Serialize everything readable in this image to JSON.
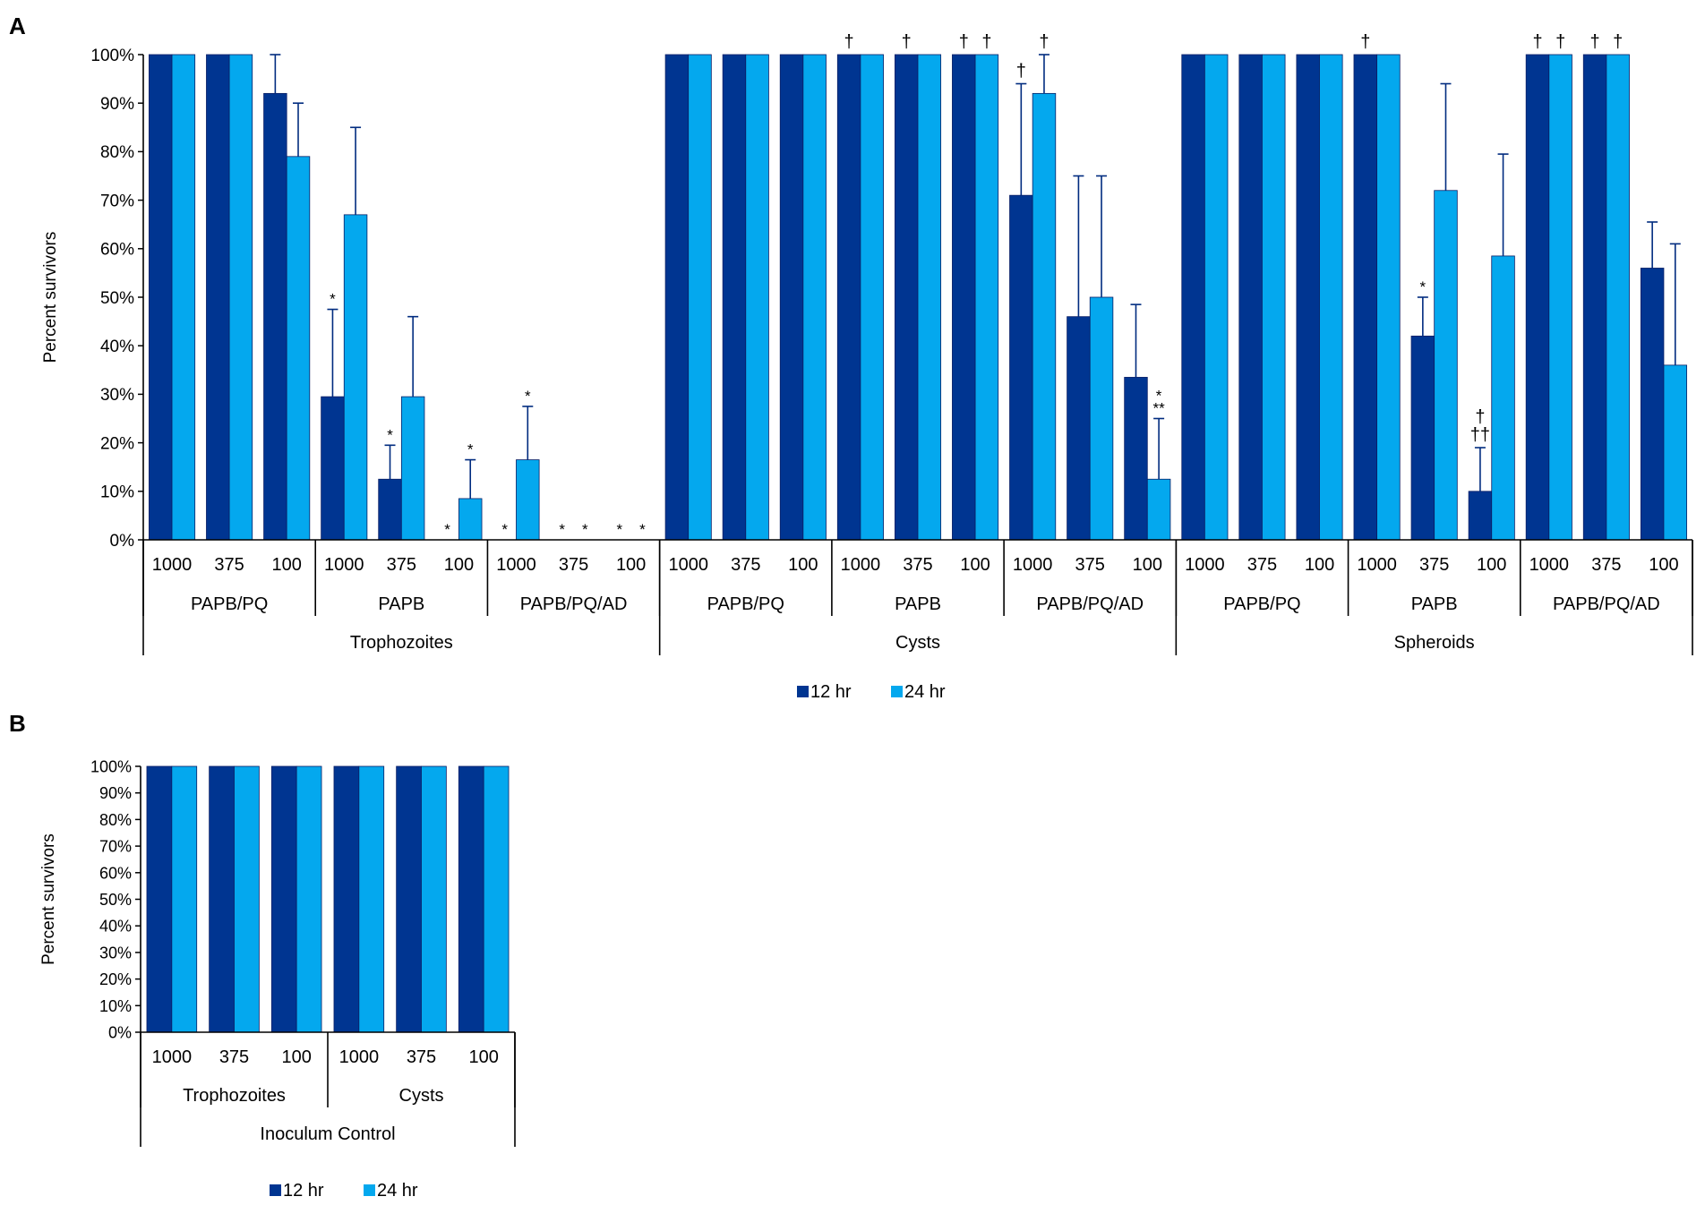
{
  "colors": {
    "s12": "#003591",
    "s24": "#04a8ee",
    "axis": "#000000",
    "err": "#002b7f"
  },
  "chart_data": [
    {
      "panel_label": "A",
      "type": "bar",
      "ylabel": "Percent survivors",
      "ylim": [
        0,
        100
      ],
      "yticks": [
        "0%",
        "10%",
        "20%",
        "30%",
        "40%",
        "50%",
        "60%",
        "70%",
        "80%",
        "90%",
        "100%"
      ],
      "legend": [
        "12 hr",
        "24 hr"
      ],
      "legend_position": "bottom-center",
      "categories": [
        "1000",
        "375",
        "100",
        "1000",
        "375",
        "100",
        "1000",
        "375",
        "100",
        "1000",
        "375",
        "100",
        "1000",
        "375",
        "100",
        "1000",
        "375",
        "100",
        "1000",
        "375",
        "100",
        "1000",
        "375",
        "100",
        "1000",
        "375",
        "100"
      ],
      "groups": [
        "PAPB/PQ",
        "PAPB",
        "PAPB/PQ/AD",
        "PAPB/PQ",
        "PAPB",
        "PAPB/PQ/AD",
        "PAPB/PQ",
        "PAPB",
        "PAPB/PQ/AD"
      ],
      "supergroups": [
        "Trophozoites",
        "Cysts",
        "Spheroids"
      ],
      "series": [
        {
          "name": "12 hr",
          "values": [
            100,
            100,
            92,
            29.5,
            12.5,
            0,
            0,
            0,
            0,
            100,
            100,
            100,
            100,
            100,
            100,
            71,
            46,
            33.5,
            100,
            100,
            100,
            100,
            42,
            10,
            100,
            100,
            56
          ],
          "errors": [
            0,
            0,
            8,
            18,
            7,
            0,
            0,
            0,
            0,
            0,
            0,
            0,
            0,
            0,
            0,
            23,
            29,
            15,
            0,
            0,
            0,
            0,
            8,
            9,
            0,
            0,
            9.5
          ]
        },
        {
          "name": "24 hr",
          "values": [
            100,
            100,
            79,
            67,
            29.5,
            8.5,
            16.5,
            0,
            0,
            100,
            100,
            100,
            100,
            100,
            100,
            92,
            50,
            12.5,
            100,
            100,
            100,
            100,
            72,
            58.5,
            100,
            100,
            36
          ],
          "errors": [
            0,
            0,
            11,
            18,
            16.5,
            8,
            11,
            0,
            0,
            0,
            0,
            0,
            0,
            0,
            0,
            8,
            25,
            12.5,
            0,
            0,
            0,
            0,
            22,
            21,
            0,
            0,
            25
          ]
        }
      ],
      "annotations": [
        {
          "bar": 3,
          "series": 0,
          "text": "*"
        },
        {
          "bar": 3,
          "series": 1,
          "text": ""
        },
        {
          "bar": 4,
          "series": 0,
          "text": "*"
        },
        {
          "bar": 5,
          "series": 0,
          "text": "*"
        },
        {
          "bar": 5,
          "series": 1,
          "text": "*"
        },
        {
          "bar": 6,
          "series": 0,
          "text": "*"
        },
        {
          "bar": 6,
          "series": 1,
          "text": "*"
        },
        {
          "bar": 7,
          "series": 0,
          "text": "*"
        },
        {
          "bar": 7,
          "series": 1,
          "text": "*"
        },
        {
          "bar": 8,
          "series": 0,
          "text": "*"
        },
        {
          "bar": 8,
          "series": 1,
          "text": "*"
        },
        {
          "bar": 12,
          "series": 0,
          "text": "†"
        },
        {
          "bar": 13,
          "series": 0,
          "text": "†"
        },
        {
          "bar": 14,
          "series": 0,
          "text": "†"
        },
        {
          "bar": 14,
          "series": 1,
          "text": "†"
        },
        {
          "bar": 15,
          "series": 0,
          "text": "†"
        },
        {
          "bar": 15,
          "series": 1,
          "text": "†"
        },
        {
          "bar": 17,
          "series": 1,
          "text": "**"
        },
        {
          "bar": 17,
          "series": 1,
          "text": "*"
        },
        {
          "bar": 21,
          "series": 0,
          "text": "†"
        },
        {
          "bar": 22,
          "series": 0,
          "text": "*"
        },
        {
          "bar": 23,
          "series": 0,
          "text": "††"
        },
        {
          "bar": 23,
          "series": 0,
          "text": "†"
        },
        {
          "bar": 24,
          "series": 0,
          "text": "†"
        },
        {
          "bar": 24,
          "series": 1,
          "text": "†"
        },
        {
          "bar": 25,
          "series": 0,
          "text": "†"
        },
        {
          "bar": 25,
          "series": 1,
          "text": "†"
        }
      ]
    },
    {
      "panel_label": "B",
      "type": "bar",
      "ylabel": "Percent survivors",
      "ylim": [
        0,
        100
      ],
      "yticks": [
        "0%",
        "10%",
        "20%",
        "30%",
        "40%",
        "50%",
        "60%",
        "70%",
        "80%",
        "90%",
        "100%"
      ],
      "legend": [
        "12 hr",
        "24 hr"
      ],
      "legend_position": "bottom-left",
      "categories": [
        "1000",
        "375",
        "100",
        "1000",
        "375",
        "100"
      ],
      "groups": [
        "Trophozoites",
        "Cysts"
      ],
      "supergroups": [
        "Inoculum Control"
      ],
      "series": [
        {
          "name": "12 hr",
          "values": [
            100,
            100,
            100,
            100,
            100,
            100
          ]
        },
        {
          "name": "24 hr",
          "values": [
            100,
            100,
            100,
            100,
            100,
            100
          ]
        }
      ]
    }
  ]
}
